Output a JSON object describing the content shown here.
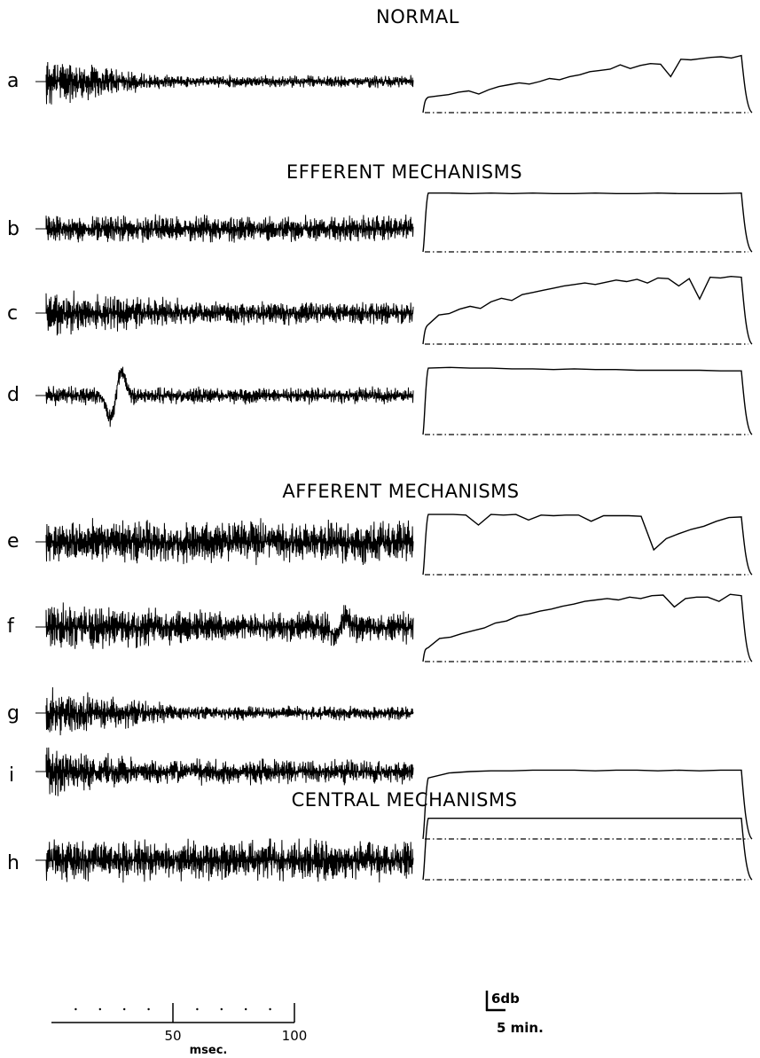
{
  "sections": [
    {
      "id": "normal",
      "heading": "NORMAL",
      "rows": [
        "a"
      ]
    },
    {
      "id": "efferent",
      "heading": "EFFERENT MECHANISMS",
      "rows": [
        "b",
        "c",
        "d"
      ]
    },
    {
      "id": "afferent",
      "heading": "AFFERENT MECHANISMS",
      "rows": [
        "e",
        "f",
        "g"
      ]
    },
    {
      "id": "central",
      "heading": "CENTRAL MECHANISMS",
      "rows": [
        "h",
        "i"
      ]
    }
  ],
  "rows": [
    {
      "label": "a",
      "wave": {
        "initial": 32,
        "steady": 8,
        "decay_end": 0.32,
        "event": null
      },
      "trend": [
        0.25,
        0.27,
        0.29,
        0.33,
        0.35,
        0.3,
        0.37,
        0.42,
        0.45,
        0.48,
        0.46,
        0.5,
        0.55,
        0.53,
        0.58,
        0.61,
        0.66,
        0.68,
        0.7,
        0.77,
        0.71,
        0.76,
        0.79,
        0.78,
        0.58,
        0.86,
        0.85,
        0.87,
        0.89,
        0.9,
        0.88,
        0.92
      ]
    },
    {
      "label": "b",
      "wave": {
        "initial": 18,
        "steady": 17,
        "decay_end": 0.2,
        "event": null
      },
      "trend": [
        0.99,
        0.99,
        0.98,
        0.99,
        0.98,
        0.99,
        0.98,
        0.98,
        0.99,
        0.98,
        0.98,
        0.99,
        0.98,
        0.98,
        0.98,
        0.99
      ]
    },
    {
      "label": "c",
      "wave": {
        "initial": 30,
        "steady": 15,
        "decay_end": 0.45,
        "event": null
      },
      "trend": [
        0.27,
        0.4,
        0.42,
        0.48,
        0.52,
        0.49,
        0.58,
        0.63,
        0.6,
        0.68,
        0.71,
        0.74,
        0.77,
        0.8,
        0.82,
        0.84,
        0.82,
        0.85,
        0.88,
        0.86,
        0.89,
        0.84,
        0.91,
        0.9,
        0.8,
        0.9,
        0.62,
        0.92,
        0.91,
        0.93,
        0.92
      ]
    },
    {
      "label": "d",
      "wave": {
        "initial": 14,
        "steady": 11,
        "decay_end": 0.2,
        "event": {
          "pos": 0.19,
          "amp": 38
        }
      },
      "trend": [
        0.96,
        0.97,
        0.96,
        0.96,
        0.95,
        0.95,
        0.94,
        0.95,
        0.94,
        0.94,
        0.93,
        0.93,
        0.93,
        0.93,
        0.92,
        0.92
      ]
    },
    {
      "label": "e",
      "wave": {
        "initial": 28,
        "steady": 27,
        "decay_end": 0.2,
        "event": null
      },
      "trend": [
        0.97,
        0.97,
        0.97,
        0.96,
        0.8,
        0.97,
        0.96,
        0.97,
        0.88,
        0.96,
        0.95,
        0.96,
        0.96,
        0.86,
        0.95,
        0.95,
        0.95,
        0.94,
        0.4,
        0.58,
        0.66,
        0.73,
        0.78,
        0.86,
        0.92,
        0.93
      ]
    },
    {
      "label": "f",
      "wave": {
        "initial": 32,
        "steady": 20,
        "decay_end": 0.55,
        "event": {
          "pos": 0.8,
          "amp": 14
        }
      },
      "trend": [
        0.2,
        0.33,
        0.35,
        0.4,
        0.44,
        0.48,
        0.55,
        0.58,
        0.65,
        0.68,
        0.72,
        0.75,
        0.79,
        0.82,
        0.86,
        0.88,
        0.9,
        0.88,
        0.92,
        0.9,
        0.94,
        0.95,
        0.78,
        0.9,
        0.92,
        0.92,
        0.86,
        0.96,
        0.94
      ]
    },
    {
      "label": "g",
      "wave": {
        "initial": 32,
        "steady": 9,
        "decay_end": 0.4,
        "event": null
      },
      "trend": null
    },
    {
      "label": "h",
      "wave": {
        "initial": 28,
        "steady": 26,
        "decay_end": 0.2,
        "event": null
      },
      "trend": [
        0.99,
        0.99,
        0.99,
        0.99,
        0.99,
        0.99,
        0.99,
        0.99,
        0.99,
        0.99,
        0.99,
        0.99,
        0.99,
        0.99,
        0.99,
        0.99
      ]
    },
    {
      "label": "i",
      "wave": {
        "initial": 36,
        "steady": 16,
        "decay_end": 0.25,
        "event": null
      },
      "trend": [
        0.86,
        0.93,
        0.95,
        0.96,
        0.96,
        0.97,
        0.97,
        0.97,
        0.96,
        0.97,
        0.97,
        0.96,
        0.97,
        0.96,
        0.97,
        0.97
      ]
    }
  ],
  "time_scale": {
    "tick_50": "50",
    "tick_100": "100",
    "unit": "msec."
  },
  "calibration": {
    "amplitude": "6db",
    "time": "5 min."
  },
  "colors": {
    "ink": "#000000",
    "paper": "#ffffff"
  }
}
